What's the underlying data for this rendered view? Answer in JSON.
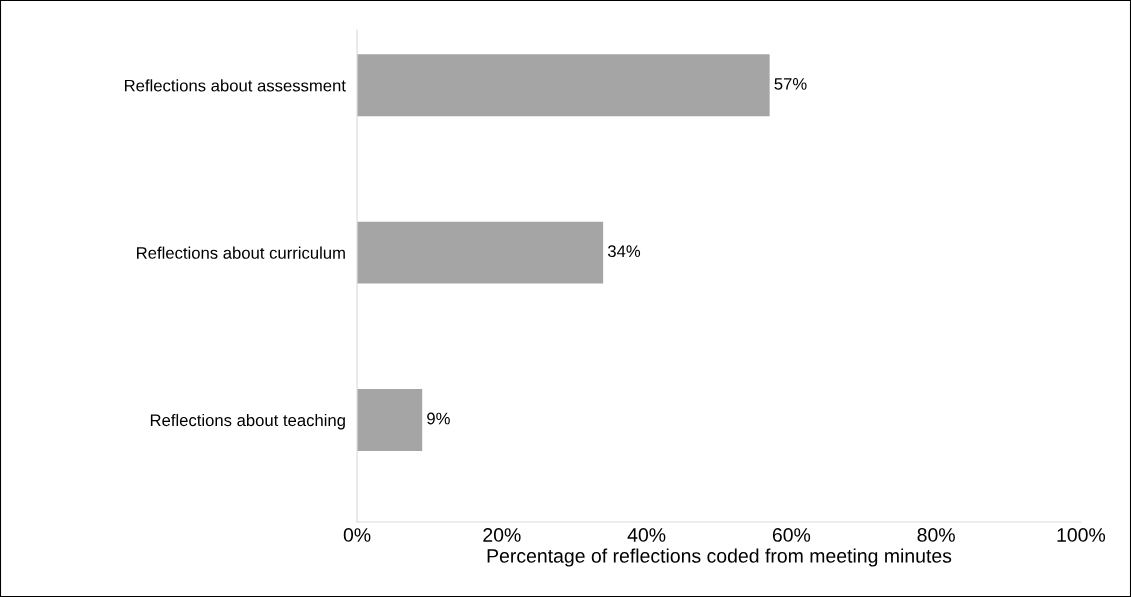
{
  "chart_data": {
    "type": "bar",
    "orientation": "horizontal",
    "xlabel": "Percentage of reflections coded from meeting minutes",
    "categories": [
      "Reflections about assessment",
      "Reflections about curriculum",
      "Reflections about teaching"
    ],
    "values": [
      57,
      34,
      9
    ],
    "value_labels": [
      "57%",
      "34%",
      "9%"
    ],
    "color": "#a5a5a5",
    "xlim": [
      0,
      100
    ],
    "xticks": [
      {
        "value": 0,
        "label": "0%"
      },
      {
        "value": 20,
        "label": "20%"
      },
      {
        "value": 40,
        "label": "40%"
      },
      {
        "value": 60,
        "label": "60%"
      },
      {
        "value": 80,
        "label": "80%"
      },
      {
        "value": 100,
        "label": "100%"
      }
    ],
    "grid": false,
    "legend": false
  }
}
